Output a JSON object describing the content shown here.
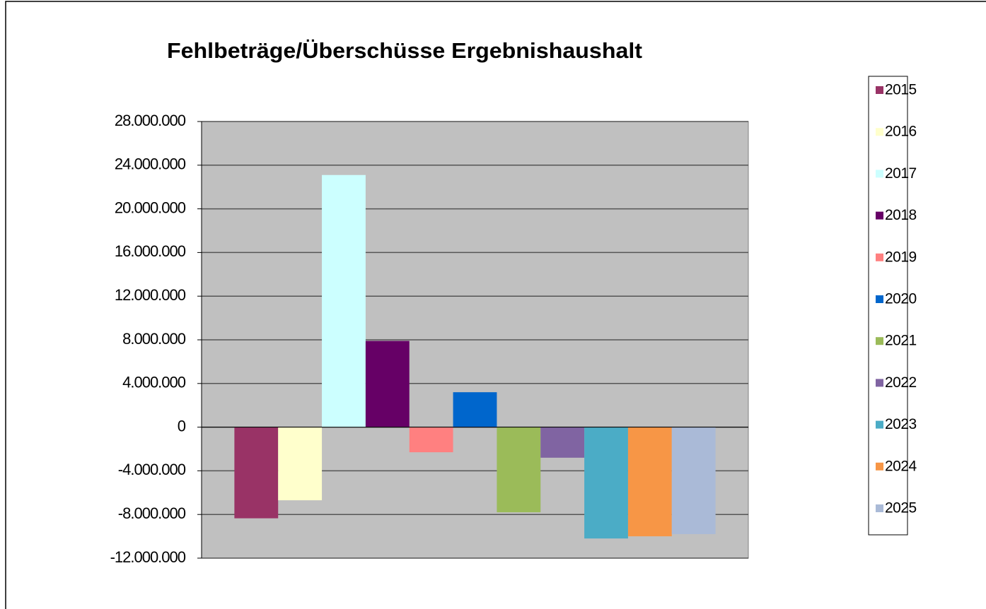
{
  "chart_data": {
    "type": "bar",
    "title": "Fehlbeträge/Überschüsse Ergebnishaushalt",
    "categories": [
      null
    ],
    "series": [
      {
        "name": "2015",
        "color": "#993366",
        "values": [
          -8350000
        ]
      },
      {
        "name": "2016",
        "color": "#ffffcc",
        "values": [
          -6700000
        ]
      },
      {
        "name": "2017",
        "color": "#ccffff",
        "values": [
          23100000
        ]
      },
      {
        "name": "2018",
        "color": "#660066",
        "values": [
          7900000
        ]
      },
      {
        "name": "2019",
        "color": "#ff8080",
        "values": [
          -2300000
        ]
      },
      {
        "name": "2020",
        "color": "#0066cc",
        "values": [
          3200000
        ]
      },
      {
        "name": "2021",
        "color": "#9bbb59",
        "values": [
          -7800000
        ]
      },
      {
        "name": "2022",
        "color": "#8064a2",
        "values": [
          -2800000
        ]
      },
      {
        "name": "2023",
        "color": "#4bacc6",
        "values": [
          -10200000
        ]
      },
      {
        "name": "2024",
        "color": "#f79646",
        "values": [
          -10000000
        ]
      },
      {
        "name": "2025",
        "color": "#aabad7",
        "values": [
          -9800000
        ]
      }
    ],
    "ylim": [
      -12000000,
      28000000
    ],
    "yticks": [
      {
        "value": -12000000,
        "label": "-12.000.000"
      },
      {
        "value": -8000000,
        "label": "-8.000.000"
      },
      {
        "value": -4000000,
        "label": "-4.000.000"
      },
      0,
      {
        "value": 4000000,
        "label": "4.000.000"
      },
      {
        "value": 8000000,
        "label": "8.000.000"
      },
      {
        "value": 12000000,
        "label": "12.000.000"
      },
      {
        "value": 16000000,
        "label": "16.000.000"
      },
      {
        "value": 20000000,
        "label": "20.000.000"
      },
      {
        "value": 24000000,
        "label": "24.000.000"
      },
      {
        "value": 28000000,
        "label": "28.000.000"
      }
    ],
    "grid": true,
    "legend": "right"
  }
}
